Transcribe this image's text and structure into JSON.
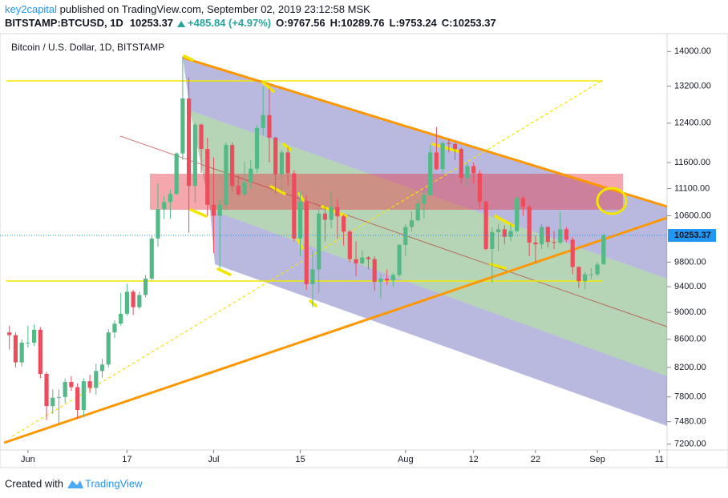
{
  "header": {
    "author": "key2capital",
    "published": "published on TradingView.com, September 02, 2019 23:12:58 MSK",
    "symbol": "BITSTAMP:BTCUSD, 1D",
    "last": "10253.37",
    "change": "+485.84 (+4.97%)",
    "open": "O:9767.56",
    "high": "H:10289.76",
    "low": "L:9753.24",
    "close": "C:10253.37"
  },
  "footer": {
    "created_with": "Created with",
    "brand": "TradingView"
  },
  "chart_data": {
    "type": "candlestick",
    "title": "Bitcoin / U.S. Dollar, 1D, BITSTAMP",
    "log_scale": true,
    "grid": false,
    "up_color": "#53b987",
    "down_color": "#eb4d5c",
    "xlim": [
      "2019-05-28",
      "2019-09-12"
    ],
    "ylim": [
      7130,
      14430
    ],
    "xticks": [
      {
        "value": "2019-06-01",
        "label": "Jun"
      },
      {
        "value": "2019-06-17",
        "label": "17"
      },
      {
        "value": "2019-07-01",
        "label": "Jul"
      },
      {
        "value": "2019-07-15",
        "label": "15"
      },
      {
        "value": "2019-08-01",
        "label": "Aug"
      },
      {
        "value": "2019-08-12",
        "label": "12"
      },
      {
        "value": "2019-08-22",
        "label": "22"
      },
      {
        "value": "2019-09-01",
        "label": "Sep"
      },
      {
        "value": "2019-09-11",
        "label": "11"
      }
    ],
    "yticks": [
      {
        "value": 14000,
        "label": "14000.00"
      },
      {
        "value": 13200,
        "label": "13200.00"
      },
      {
        "value": 12400,
        "label": "12400.00"
      },
      {
        "value": 11600,
        "label": "11600.00"
      },
      {
        "value": 11100,
        "label": "11100.00"
      },
      {
        "value": 10600,
        "label": "10600.00"
      },
      {
        "value": 9800,
        "label": "9800.00"
      },
      {
        "value": 9400,
        "label": "9400.00"
      },
      {
        "value": 9000,
        "label": "9000.00"
      },
      {
        "value": 8600,
        "label": "8600.00"
      },
      {
        "value": 8200,
        "label": "8200.00"
      },
      {
        "value": 7800,
        "label": "7800.00"
      },
      {
        "value": 7480,
        "label": "7480.00"
      },
      {
        "value": 7200,
        "label": "7200.00"
      }
    ],
    "last_price": 10253.37,
    "x": [
      "2019-05-29",
      "2019-05-30",
      "2019-05-31",
      "2019-06-01",
      "2019-06-02",
      "2019-06-03",
      "2019-06-04",
      "2019-06-05",
      "2019-06-06",
      "2019-06-07",
      "2019-06-08",
      "2019-06-09",
      "2019-06-10",
      "2019-06-11",
      "2019-06-12",
      "2019-06-13",
      "2019-06-14",
      "2019-06-15",
      "2019-06-16",
      "2019-06-17",
      "2019-06-18",
      "2019-06-19",
      "2019-06-20",
      "2019-06-21",
      "2019-06-22",
      "2019-06-23",
      "2019-06-24",
      "2019-06-25",
      "2019-06-26",
      "2019-06-27",
      "2019-06-28",
      "2019-06-29",
      "2019-06-30",
      "2019-07-01",
      "2019-07-02",
      "2019-07-03",
      "2019-07-04",
      "2019-07-05",
      "2019-07-06",
      "2019-07-07",
      "2019-07-08",
      "2019-07-09",
      "2019-07-10",
      "2019-07-11",
      "2019-07-12",
      "2019-07-13",
      "2019-07-14",
      "2019-07-15",
      "2019-07-16",
      "2019-07-17",
      "2019-07-18",
      "2019-07-19",
      "2019-07-20",
      "2019-07-21",
      "2019-07-22",
      "2019-07-23",
      "2019-07-24",
      "2019-07-25",
      "2019-07-26",
      "2019-07-27",
      "2019-07-28",
      "2019-07-29",
      "2019-07-30",
      "2019-07-31",
      "2019-08-01",
      "2019-08-02",
      "2019-08-03",
      "2019-08-04",
      "2019-08-05",
      "2019-08-06",
      "2019-08-07",
      "2019-08-08",
      "2019-08-09",
      "2019-08-10",
      "2019-08-11",
      "2019-08-12",
      "2019-08-13",
      "2019-08-14",
      "2019-08-15",
      "2019-08-16",
      "2019-08-17",
      "2019-08-18",
      "2019-08-19",
      "2019-08-20",
      "2019-08-21",
      "2019-08-22",
      "2019-08-23",
      "2019-08-24",
      "2019-08-25",
      "2019-08-26",
      "2019-08-27",
      "2019-08-28",
      "2019-08-29",
      "2019-08-30",
      "2019-08-31",
      "2019-09-01",
      "2019-09-02"
    ],
    "open": [
      8700,
      8660,
      8270,
      8550,
      8550,
      8740,
      8110,
      7680,
      7790,
      7800,
      8000,
      7930,
      7630,
      8010,
      7920,
      8150,
      8240,
      8700,
      8830,
      8980,
      9320,
      9080,
      9270,
      9530,
      10200,
      10720,
      10850,
      11000,
      11780,
      12930,
      11150,
      12370,
      11870,
      10800,
      10600,
      10800,
      11950,
      11150,
      10990,
      11220,
      11480,
      12300,
      12570,
      12100,
      11370,
      11800,
      11390,
      10200,
      10850,
      9440,
      9680,
      10640,
      10530,
      10760,
      10590,
      10320,
      9850,
      9780,
      9880,
      9850,
      9480,
      9530,
      9500,
      9590,
      10090,
      10400,
      10520,
      10820,
      10980,
      11800,
      11470,
      11990,
      11970,
      11870,
      11300,
      11530,
      11390,
      10860,
      10020,
      10310,
      10360,
      10230,
      10330,
      10920,
      10760,
      10130,
      10100,
      10400,
      10140,
      10130,
      10360,
      10180,
      9720,
      9490,
      9600,
      9600,
      9767.56
    ],
    "high": [
      8800,
      8700,
      8600,
      8800,
      8820,
      8780,
      8140,
      7900,
      7900,
      8050,
      8080,
      7980,
      8050,
      8100,
      8250,
      8320,
      8750,
      8880,
      9300,
      9450,
      9350,
      9320,
      9590,
      10250,
      11200,
      10960,
      11080,
      11800,
      13880,
      13400,
      12400,
      12390,
      12100,
      11700,
      10900,
      12000,
      12000,
      11350,
      11620,
      11650,
      12360,
      13200,
      13150,
      12120,
      11850,
      11900,
      11450,
      11050,
      10970,
      9990,
      10730,
      10780,
      11050,
      10900,
      10620,
      10350,
      10150,
      10000,
      9900,
      9900,
      9600,
      9680,
      9620,
      10100,
      10450,
      10680,
      10900,
      11050,
      11950,
      12320,
      12020,
      12070,
      12000,
      11900,
      11600,
      11600,
      11450,
      10870,
      10400,
      10460,
      10430,
      10450,
      10950,
      10960,
      10800,
      10250,
      10450,
      10420,
      10330,
      10670,
      10400,
      10230,
      9730,
      9640,
      9700,
      9800,
      10289.76
    ],
    "low": [
      8450,
      8200,
      8210,
      8480,
      8500,
      8050,
      7500,
      7580,
      7450,
      7720,
      7880,
      7520,
      7550,
      7850,
      7830,
      8060,
      8200,
      8620,
      8800,
      8950,
      8960,
      9050,
      9230,
      9500,
      10060,
      10540,
      10550,
      10980,
      11650,
      10300,
      10830,
      11400,
      10600,
      9950,
      9700,
      10700,
      11050,
      10960,
      10980,
      11100,
      11400,
      12150,
      11600,
      11000,
      11050,
      11150,
      10150,
      9900,
      9350,
      9080,
      9300,
      10150,
      10380,
      10200,
      10080,
      9800,
      9570,
      9760,
      9680,
      9340,
      9220,
      9430,
      9400,
      9550,
      9900,
      10320,
      10500,
      10550,
      10960,
      11450,
      11400,
      11800,
      11650,
      11200,
      11150,
      11200,
      10720,
      10000,
      9460,
      9980,
      10100,
      10150,
      10300,
      10600,
      9900,
      9800,
      10020,
      10050,
      10020,
      10100,
      10140,
      9600,
      9380,
      9360,
      9520,
      9570,
      9753.24
    ],
    "close": [
      8660,
      8270,
      8550,
      8550,
      8740,
      8110,
      7680,
      7790,
      7800,
      8000,
      7930,
      7630,
      8010,
      7920,
      8150,
      8240,
      8700,
      8830,
      8980,
      9320,
      9080,
      9270,
      9530,
      10200,
      10720,
      10850,
      11000,
      11780,
      12930,
      11150,
      12370,
      11870,
      10800,
      10600,
      10800,
      11950,
      11150,
      10990,
      11220,
      11480,
      12300,
      12570,
      12100,
      11370,
      11800,
      11390,
      10200,
      10850,
      9440,
      9680,
      10640,
      10530,
      10760,
      10590,
      10320,
      9850,
      9780,
      9880,
      9850,
      9480,
      9530,
      9500,
      9590,
      10090,
      10400,
      10520,
      10820,
      10980,
      11800,
      11470,
      11990,
      11970,
      11870,
      11300,
      11530,
      11390,
      10860,
      10020,
      10310,
      10360,
      10230,
      10330,
      10920,
      10760,
      10130,
      10100,
      10400,
      10140,
      10130,
      10360,
      10180,
      9720,
      9490,
      9600,
      9600,
      9760,
      10253.37
    ]
  }
}
